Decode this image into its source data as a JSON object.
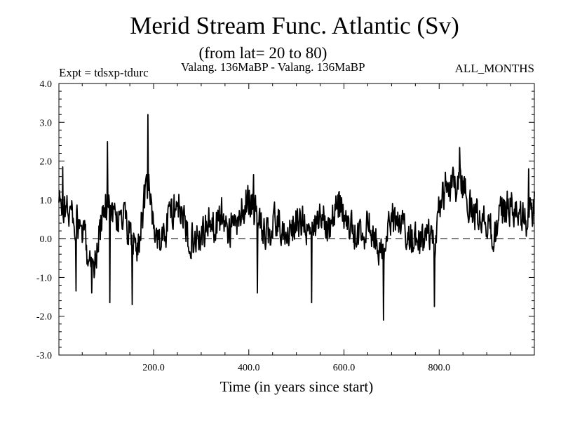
{
  "chart_data": {
    "type": "line",
    "title": "Merid Stream Func. Atlantic (Sv)",
    "subtitle": "(from lat= 20 to 80)",
    "experiment_label": "Expt = tdsxp-tdurc",
    "comparison_label": "Valang. 136MaBP - Valang.  136MaBP",
    "period_label": "ALL_MONTHS",
    "xlabel": "Time (in years since start)",
    "ylabel": "",
    "xlim": [
      1,
      1000
    ],
    "ylim": [
      -3.0,
      4.0
    ],
    "x_ticks": [
      {
        "value": 200,
        "label": "200.0"
      },
      {
        "value": 400,
        "label": "400.0"
      },
      {
        "value": 600,
        "label": "600.0"
      },
      {
        "value": 800,
        "label": "800.0"
      }
    ],
    "y_ticks": [
      {
        "value": 4.0,
        "label": "4.0"
      },
      {
        "value": 3.0,
        "label": "3.0"
      },
      {
        "value": 2.0,
        "label": "2.0"
      },
      {
        "value": 1.0,
        "label": "1.0"
      },
      {
        "value": 0.0,
        "label": "0.0"
      },
      {
        "value": -1.0,
        "label": "-1.0"
      },
      {
        "value": -2.0,
        "label": "-2.0"
      },
      {
        "value": -3.0,
        "label": "-3.0"
      }
    ],
    "reference_line": {
      "y": 0.0,
      "style": "dashed"
    },
    "series_trend_knots": [
      [
        1,
        0.9
      ],
      [
        10,
        0.8
      ],
      [
        25,
        0.7
      ],
      [
        40,
        0.3
      ],
      [
        55,
        0.0
      ],
      [
        65,
        -0.5
      ],
      [
        75,
        -0.7
      ],
      [
        90,
        0.4
      ],
      [
        105,
        1.1
      ],
      [
        118,
        0.5
      ],
      [
        135,
        0.6
      ],
      [
        150,
        0.1
      ],
      [
        165,
        -0.3
      ],
      [
        180,
        0.9
      ],
      [
        190,
        1.3
      ],
      [
        200,
        0.3
      ],
      [
        215,
        -0.2
      ],
      [
        230,
        0.5
      ],
      [
        250,
        1.0
      ],
      [
        270,
        0.1
      ],
      [
        290,
        0.0
      ],
      [
        310,
        0.3
      ],
      [
        330,
        0.4
      ],
      [
        345,
        0.6
      ],
      [
        360,
        0.2
      ],
      [
        375,
        0.4
      ],
      [
        400,
        1.1
      ],
      [
        425,
        0.3
      ],
      [
        440,
        0.1
      ],
      [
        460,
        0.5
      ],
      [
        480,
        0.0
      ],
      [
        500,
        0.5
      ],
      [
        520,
        0.3
      ],
      [
        535,
        0.0
      ],
      [
        550,
        0.7
      ],
      [
        570,
        0.4
      ],
      [
        590,
        0.9
      ],
      [
        610,
        0.3
      ],
      [
        630,
        0.0
      ],
      [
        650,
        0.3
      ],
      [
        665,
        0.2
      ],
      [
        680,
        -0.4
      ],
      [
        692,
        0.0
      ],
      [
        700,
        0.6
      ],
      [
        720,
        0.3
      ],
      [
        740,
        0.1
      ],
      [
        760,
        -0.2
      ],
      [
        775,
        0.1
      ],
      [
        790,
        -0.3
      ],
      [
        800,
        0.8
      ],
      [
        815,
        1.4
      ],
      [
        830,
        1.3
      ],
      [
        845,
        1.6
      ],
      [
        860,
        0.9
      ],
      [
        880,
        0.6
      ],
      [
        900,
        0.5
      ],
      [
        915,
        0.0
      ],
      [
        930,
        0.6
      ],
      [
        945,
        0.9
      ],
      [
        960,
        0.6
      ],
      [
        975,
        0.4
      ],
      [
        990,
        0.5
      ],
      [
        1000,
        1.0
      ]
    ],
    "series_extremes": [
      {
        "x": 9,
        "y": 1.85
      },
      {
        "x": 37,
        "y": -1.35
      },
      {
        "x": 70,
        "y": -1.4
      },
      {
        "x": 103,
        "y": 2.5
      },
      {
        "x": 108,
        "y": -1.65
      },
      {
        "x": 155,
        "y": -1.7
      },
      {
        "x": 188,
        "y": 3.2
      },
      {
        "x": 410,
        "y": 1.65
      },
      {
        "x": 418,
        "y": -1.4
      },
      {
        "x": 532,
        "y": -1.65
      },
      {
        "x": 683,
        "y": -2.1
      },
      {
        "x": 790,
        "y": -1.75
      },
      {
        "x": 843,
        "y": 2.35
      },
      {
        "x": 988,
        "y": 1.8
      }
    ],
    "series_noise_amplitude": 0.42,
    "line_color": "#000000",
    "background_color": "#ffffff"
  }
}
